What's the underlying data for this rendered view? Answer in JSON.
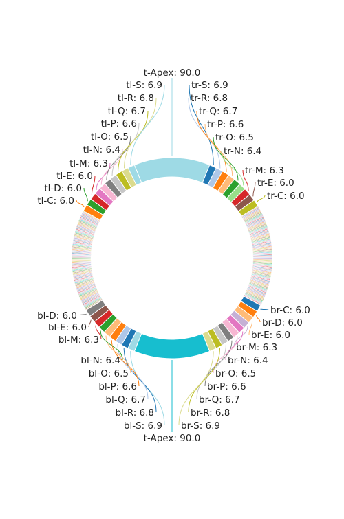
{
  "chart_data": {
    "type": "pie",
    "variant": "donut",
    "labeled_slices": [
      {
        "label": "t-Apex",
        "value": 90.0,
        "position": "top",
        "color": "#9edae5"
      },
      {
        "label": "tr-S",
        "value": 6.9,
        "position": "top-right",
        "color": "#1f77b4"
      },
      {
        "label": "tr-R",
        "value": 6.8,
        "position": "top-right",
        "color": "#aec7e8"
      },
      {
        "label": "tr-Q",
        "value": 6.7,
        "position": "top-right",
        "color": "#ff7f0e"
      },
      {
        "label": "tr-P",
        "value": 6.6,
        "position": "top-right",
        "color": "#ffbb78"
      },
      {
        "label": "tr-O",
        "value": 6.5,
        "position": "top-right",
        "color": "#2ca02c"
      },
      {
        "label": "tr-N",
        "value": 6.4,
        "position": "top-right",
        "color": "#98df8a"
      },
      {
        "label": "tr-M",
        "value": 6.3,
        "position": "top-right",
        "color": "#d62728"
      },
      {
        "label": "tr-E",
        "value": 6.0,
        "position": "top-right",
        "color": "#8c564b"
      },
      {
        "label": "tr-C",
        "value": 6.0,
        "position": "top-right",
        "color": "#bcbd22"
      },
      {
        "label": "br-C",
        "value": 6.0,
        "position": "bottom-right",
        "color": "#1f77b4"
      },
      {
        "label": "br-D",
        "value": 6.0,
        "position": "bottom-right",
        "color": "#ff7f0e"
      },
      {
        "label": "br-E",
        "value": 6.0,
        "position": "bottom-right",
        "color": "#ffbb78"
      },
      {
        "label": "br-M",
        "value": 6.3,
        "position": "bottom-right",
        "color": "#c5b0d5"
      },
      {
        "label": "br-N",
        "value": 6.4,
        "position": "bottom-right",
        "color": "#e377c2"
      },
      {
        "label": "br-O",
        "value": 6.5,
        "position": "bottom-right",
        "color": "#f7b6d2"
      },
      {
        "label": "br-P",
        "value": 6.6,
        "position": "bottom-right",
        "color": "#7f7f7f"
      },
      {
        "label": "br-Q",
        "value": 6.7,
        "position": "bottom-right",
        "color": "#c7c7c7"
      },
      {
        "label": "br-R",
        "value": 6.8,
        "position": "bottom-right",
        "color": "#bcbd22"
      },
      {
        "label": "br-S",
        "value": 6.9,
        "position": "bottom-right",
        "color": "#dbdb8d"
      },
      {
        "label": "t-Apex",
        "value": 90.0,
        "position": "bottom",
        "color": "#17becf"
      },
      {
        "label": "bl-S",
        "value": 6.9,
        "position": "bottom-left",
        "color": "#9edae5"
      },
      {
        "label": "bl-R",
        "value": 6.8,
        "position": "bottom-left",
        "color": "#1f77b4"
      },
      {
        "label": "bl-Q",
        "value": 6.7,
        "position": "bottom-left",
        "color": "#aec7e8"
      },
      {
        "label": "bl-P",
        "value": 6.6,
        "position": "bottom-left",
        "color": "#ff7f0e"
      },
      {
        "label": "bl-O",
        "value": 6.5,
        "position": "bottom-left",
        "color": "#ffbb78"
      },
      {
        "label": "bl-N",
        "value": 6.4,
        "position": "bottom-left",
        "color": "#2ca02c"
      },
      {
        "label": "bl-M",
        "value": 6.3,
        "position": "bottom-left",
        "color": "#d62728"
      },
      {
        "label": "bl-E",
        "value": 6.0,
        "position": "bottom-left",
        "color": "#8c564b"
      },
      {
        "label": "bl-D",
        "value": 6.0,
        "position": "bottom-left",
        "color": "#7f7f7f"
      },
      {
        "label": "tl-C",
        "value": 6.0,
        "position": "top-left",
        "color": "#ff7f0e"
      },
      {
        "label": "tl-D",
        "value": 6.0,
        "position": "top-left",
        "color": "#2ca02c"
      },
      {
        "label": "tl-E",
        "value": 6.0,
        "position": "top-left",
        "color": "#d62728"
      },
      {
        "label": "tl-M",
        "value": 6.3,
        "position": "top-left",
        "color": "#e377c2"
      },
      {
        "label": "tl-N",
        "value": 6.4,
        "position": "top-left",
        "color": "#f7b6d2"
      },
      {
        "label": "tl-O",
        "value": 6.5,
        "position": "top-left",
        "color": "#7f7f7f"
      },
      {
        "label": "tl-P",
        "value": 6.6,
        "position": "top-left",
        "color": "#c7c7c7"
      },
      {
        "label": "tl-Q",
        "value": 6.7,
        "position": "top-left",
        "color": "#bcbd22"
      },
      {
        "label": "tl-R",
        "value": 6.8,
        "position": "top-left",
        "color": "#dbdb8d"
      },
      {
        "label": "tl-S",
        "value": 6.9,
        "position": "top-left",
        "color": "#9edae5"
      }
    ],
    "unlabeled_slice_count": 320,
    "unlabeled_slice_approx_value": 1.0,
    "palette": [
      "#1f77b4",
      "#aec7e8",
      "#ff7f0e",
      "#ffbb78",
      "#2ca02c",
      "#98df8a",
      "#d62728",
      "#ff9896",
      "#9467bd",
      "#c5b0d5",
      "#8c564b",
      "#c49c94",
      "#e377c2",
      "#f7b6d2",
      "#7f7f7f",
      "#c7c7c7",
      "#bcbd22",
      "#dbdb8d",
      "#17becf",
      "#9edae5"
    ],
    "legend": "none",
    "title": ""
  }
}
